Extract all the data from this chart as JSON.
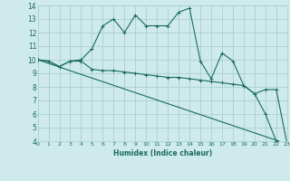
{
  "xlabel": "Humidex (Indice chaleur)",
  "bg_color": "#ceeaea",
  "grid_color": "#aacfcf",
  "line_color": "#1a6b60",
  "xlim": [
    0,
    23
  ],
  "ylim": [
    4,
    14
  ],
  "xticks": [
    0,
    1,
    2,
    3,
    4,
    5,
    6,
    7,
    8,
    9,
    10,
    11,
    12,
    13,
    14,
    15,
    16,
    17,
    18,
    19,
    20,
    21,
    22,
    23
  ],
  "yticks": [
    4,
    5,
    6,
    7,
    8,
    9,
    10,
    11,
    12,
    13,
    14
  ],
  "line1_x": [
    0,
    1,
    2,
    3,
    4,
    5,
    6,
    7,
    8,
    9,
    10,
    11,
    12,
    13,
    14,
    15,
    16,
    17,
    18,
    19,
    20,
    21,
    22,
    23
  ],
  "line1_y": [
    10.0,
    9.9,
    9.5,
    9.9,
    10.0,
    10.8,
    12.5,
    13.0,
    12.0,
    13.3,
    12.5,
    12.5,
    12.5,
    13.5,
    13.8,
    9.9,
    8.6,
    10.5,
    9.9,
    8.1,
    7.5,
    6.0,
    4.0,
    3.8
  ],
  "line2_x": [
    0,
    1,
    2,
    3,
    4,
    5,
    6,
    7,
    8,
    9,
    10,
    11,
    12,
    13,
    14,
    15,
    16,
    17,
    18,
    19,
    20,
    21,
    22,
    23
  ],
  "line2_y": [
    10.0,
    9.9,
    9.5,
    9.9,
    9.9,
    9.3,
    9.2,
    9.2,
    9.1,
    9.0,
    8.9,
    8.8,
    8.7,
    8.7,
    8.6,
    8.5,
    8.4,
    8.3,
    8.2,
    8.1,
    7.5,
    7.8,
    7.8,
    3.8
  ],
  "line3_x": [
    0,
    23
  ],
  "line3_y": [
    10.0,
    3.8
  ]
}
